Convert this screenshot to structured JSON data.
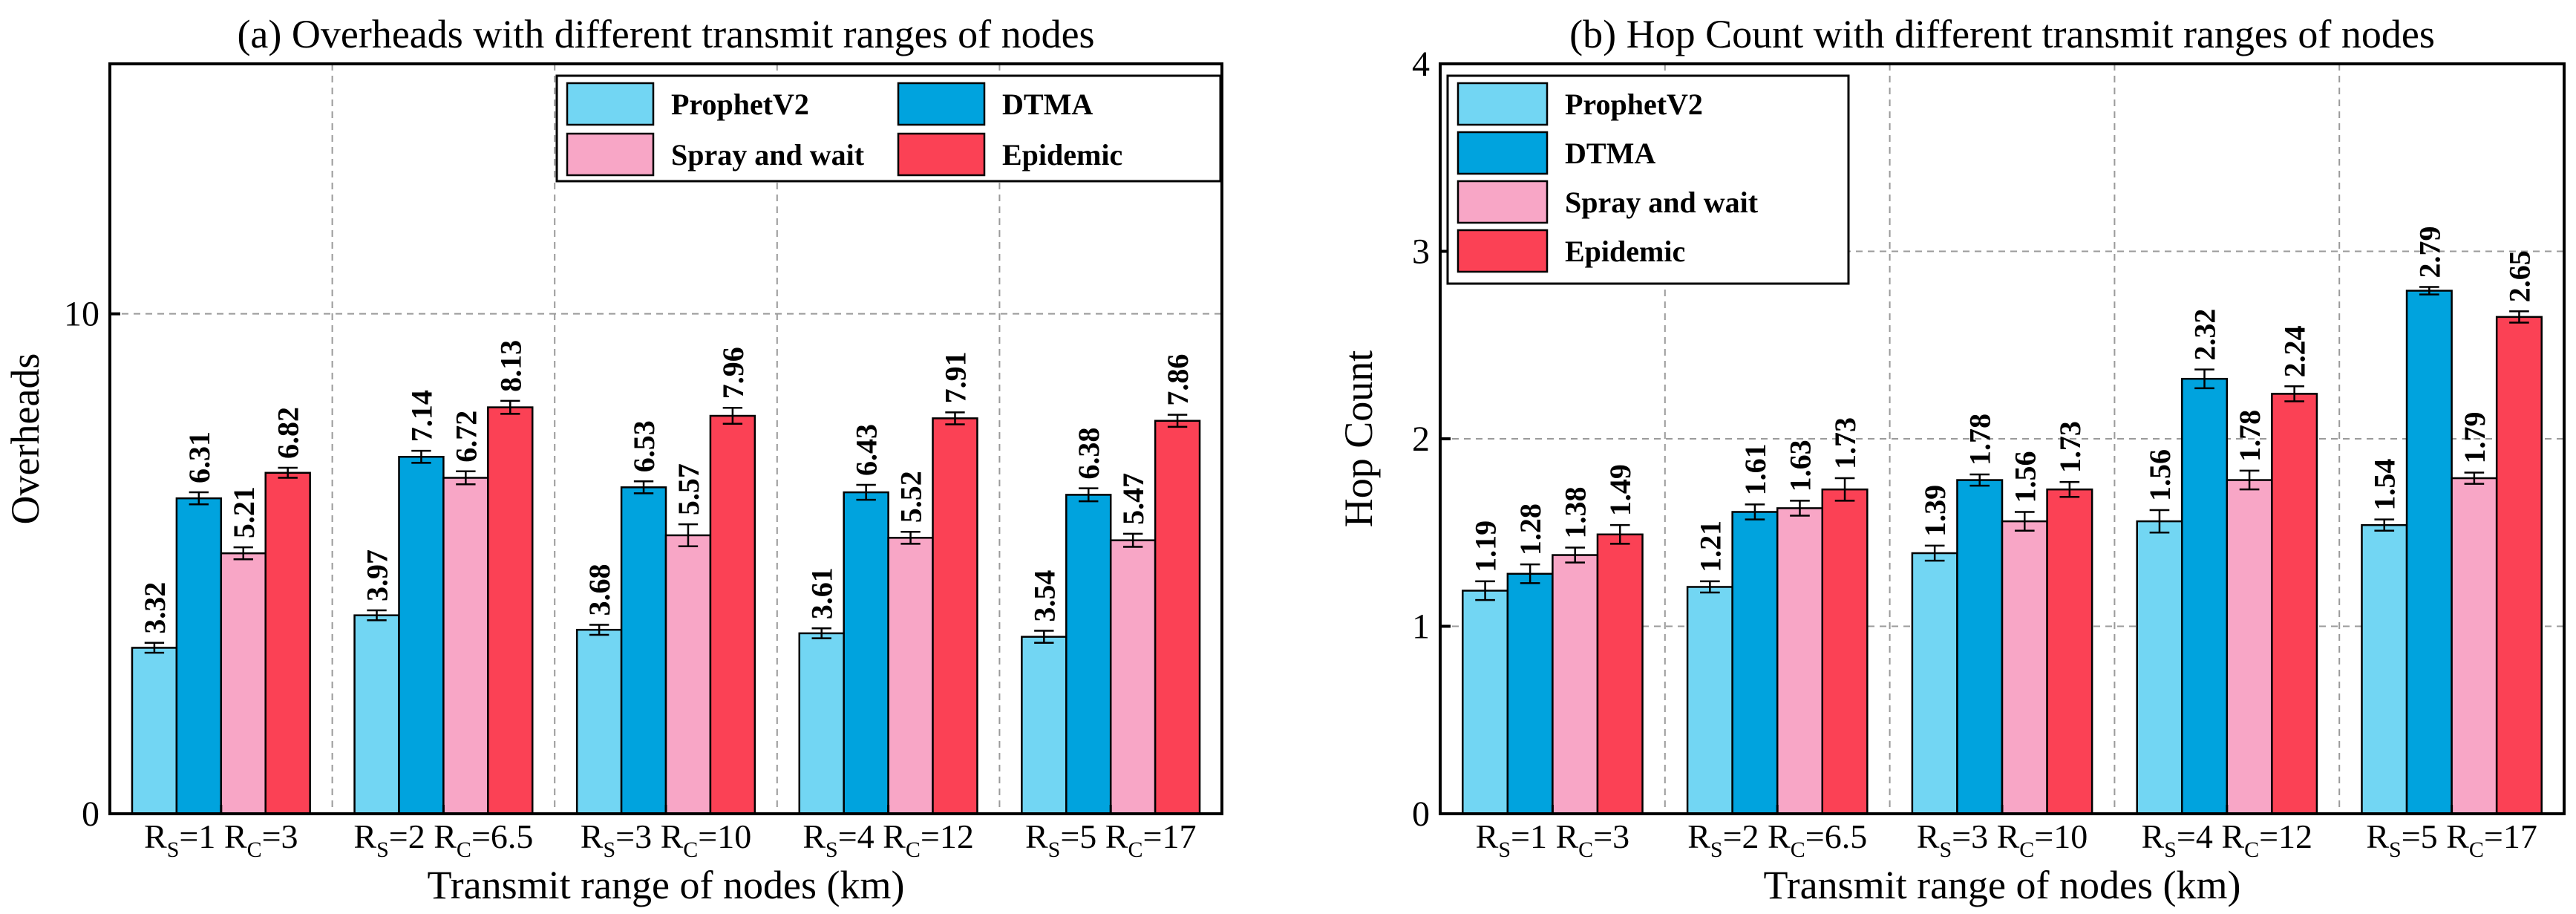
{
  "colors": {
    "ProphetV2": "#72d6f3",
    "DTMA": "#00a3de",
    "Spray and wait": "#f8a6c6",
    "Epidemic": "#fb4155"
  },
  "chart_data": [
    {
      "type": "bar",
      "title": "(a) Overheads with different transmit ranges of nodes",
      "xlabel": "Transmit range of nodes (km)",
      "ylabel": "Overheads",
      "ylim": [
        0,
        15
      ],
      "yticks": [
        0,
        10
      ],
      "grid": true,
      "legend": {
        "placement": "top-right",
        "columns": 2
      },
      "categories": [
        {
          "rs": "1",
          "rc": "3"
        },
        {
          "rs": "2",
          "rc": "6.5"
        },
        {
          "rs": "3",
          "rc": "10"
        },
        {
          "rs": "4",
          "rc": "12"
        },
        {
          "rs": "5",
          "rc": "17"
        }
      ],
      "category_template": {
        "s_letter": "R",
        "s_sub": "S",
        "c_letter": "R",
        "c_sub": "C",
        "eq": "="
      },
      "series": [
        {
          "name": "ProphetV2",
          "values": [
            3.32,
            3.97,
            3.68,
            3.61,
            3.54
          ],
          "labels": [
            "3.32",
            "3.97",
            "3.68",
            "3.61",
            "3.54"
          ],
          "errors": [
            0.1,
            0.1,
            0.1,
            0.1,
            0.12
          ]
        },
        {
          "name": "DTMA",
          "values": [
            6.31,
            7.14,
            6.53,
            6.43,
            6.38
          ],
          "labels": [
            "6.31",
            "7.14",
            "6.53",
            "6.43",
            "6.38"
          ],
          "errors": [
            0.12,
            0.12,
            0.12,
            0.15,
            0.13
          ]
        },
        {
          "name": "Spray and wait",
          "values": [
            5.21,
            6.72,
            5.57,
            5.52,
            5.47
          ],
          "labels": [
            "5.21",
            "6.72",
            "5.57",
            "5.52",
            "5.47"
          ],
          "errors": [
            0.12,
            0.13,
            0.22,
            0.12,
            0.13
          ]
        },
        {
          "name": "Epidemic",
          "values": [
            6.82,
            8.13,
            7.96,
            7.91,
            7.86
          ],
          "labels": [
            "6.82",
            "8.13",
            "7.96",
            "7.91",
            "7.86"
          ],
          "errors": [
            0.1,
            0.13,
            0.16,
            0.12,
            0.12
          ]
        }
      ]
    },
    {
      "type": "bar",
      "title": "(b) Hop Count with different transmit ranges of nodes",
      "xlabel": "Transmit range of nodes (km)",
      "ylabel": "Hop Count",
      "ylim": [
        0,
        4
      ],
      "yticks": [
        0,
        1,
        2,
        3,
        4
      ],
      "grid": true,
      "legend": {
        "placement": "top-left",
        "columns": 1
      },
      "categories": [
        {
          "rs": "1",
          "rc": "3"
        },
        {
          "rs": "2",
          "rc": "6.5"
        },
        {
          "rs": "3",
          "rc": "10"
        },
        {
          "rs": "4",
          "rc": "12"
        },
        {
          "rs": "5",
          "rc": "17"
        }
      ],
      "category_template": {
        "s_letter": "R",
        "s_sub": "S",
        "c_letter": "R",
        "c_sub": "C",
        "eq": "="
      },
      "series": [
        {
          "name": "ProphetV2",
          "values": [
            1.19,
            1.21,
            1.39,
            1.56,
            1.54
          ],
          "labels": [
            "1.19",
            "1.21",
            "1.39",
            "1.56",
            "1.54"
          ],
          "errors": [
            0.05,
            0.03,
            0.04,
            0.06,
            0.03
          ]
        },
        {
          "name": "DTMA",
          "values": [
            1.28,
            1.61,
            1.78,
            2.32,
            2.79
          ],
          "labels": [
            "1.28",
            "1.61",
            "1.78",
            "2.32",
            "2.79"
          ],
          "errors": [
            0.05,
            0.04,
            0.03,
            0.05,
            0.02
          ]
        },
        {
          "name": "Spray and wait",
          "values": [
            1.38,
            1.63,
            1.56,
            1.78,
            1.79
          ],
          "labels": [
            "1.38",
            "1.63",
            "1.56",
            "1.78",
            "1.79"
          ],
          "errors": [
            0.04,
            0.04,
            0.05,
            0.05,
            0.03
          ]
        },
        {
          "name": "Epidemic",
          "values": [
            1.49,
            1.73,
            1.73,
            2.24,
            2.65
          ],
          "labels": [
            "1.49",
            "1.73",
            "1.73",
            "2.24",
            "2.65"
          ],
          "errors": [
            0.05,
            0.06,
            0.04,
            0.04,
            0.03
          ]
        }
      ]
    }
  ]
}
